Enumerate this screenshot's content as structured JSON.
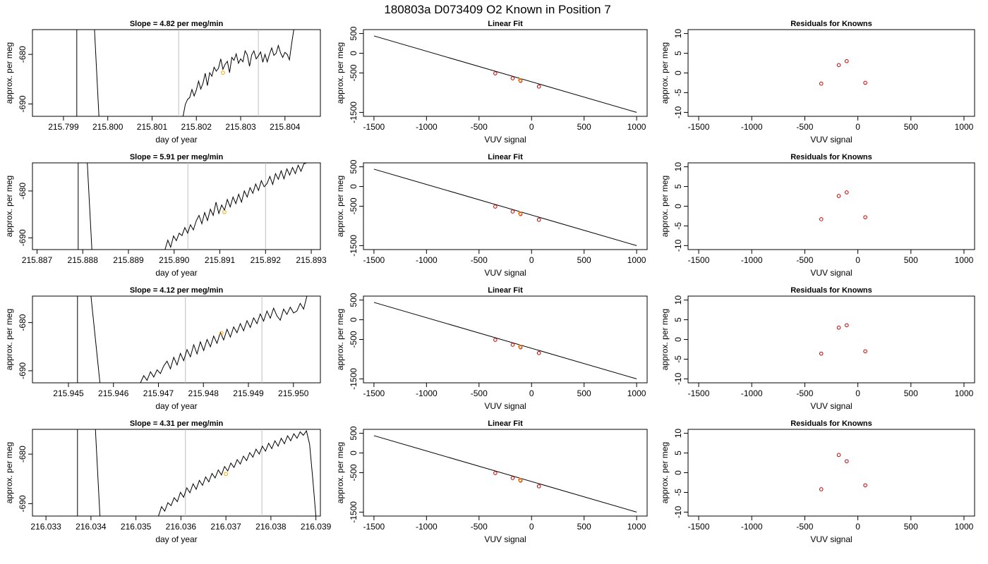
{
  "figure_title": "180803a     D073409   O2 Known in Position  7",
  "colors": {
    "trace": "#000000",
    "marker_line": "#bfbfbf",
    "fit_point": "#cc0000",
    "sample_point": "#ffa500",
    "residual_point": "#cc0000",
    "frame": "#000000"
  },
  "chart_data": [
    {
      "type": "line",
      "panel": "row1-trace",
      "title": "Slope =  4.82  per meg/min",
      "xlabel": "day of year",
      "ylabel": "approx. per meg",
      "xlim": [
        215.7983,
        215.8048
      ],
      "ylim": [
        -692.5,
        -675.0
      ],
      "xticks": [
        "215.799",
        "215.800",
        "215.801",
        "215.802",
        "215.803",
        "215.804"
      ],
      "yticks": [
        "-680",
        "-690"
      ],
      "vlines": [
        215.8016,
        215.8034
      ],
      "sample_point": {
        "x": 215.8026,
        "y": -683.7
      },
      "trace": {
        "x0": 215.8017,
        "x1": 215.8042,
        "amp": 4.5,
        "y": [
          -692.5,
          -690.1,
          -689.1,
          -688.7,
          -687.1,
          -688.4,
          -687.2,
          -685.4,
          -687.0,
          -685.8,
          -683.8,
          -686.3,
          -683.7,
          -684.4,
          -682.6,
          -683.4,
          -682.8,
          -680.9,
          -683.0,
          -682.0,
          -681.4,
          -683.7,
          -680.6,
          -681.2,
          -679.9,
          -681.8,
          -680.9,
          -681.5,
          -679.3,
          -680.1,
          -682.4,
          -680.1,
          -679.3,
          -680.9,
          -680.3,
          -679.5,
          -681.6,
          -680.0,
          -681.5,
          -680.0,
          -678.7,
          -680.2,
          -679.8,
          -678.2,
          -679.7,
          -680.6,
          -679.6,
          -680.0,
          -681.1,
          -677.9,
          -675.0
        ]
      },
      "spike": [
        {
          "x": 215.7993,
          "y": -692.5
        },
        {
          "x": 215.7993,
          "y": -675.0
        },
        {
          "x": 215.7997,
          "y": -675.0
        },
        {
          "x": 215.7998,
          "y": -692.5
        }
      ]
    },
    {
      "type": "line",
      "panel": "row2-trace",
      "title": "Slope =  5.91  per meg/min",
      "xlabel": "day of year",
      "ylabel": "approx. per meg",
      "xlim": [
        215.8869,
        215.8932
      ],
      "ylim": [
        -692.5,
        -674.0
      ],
      "xticks": [
        "215.887",
        "215.888",
        "215.889",
        "215.890",
        "215.891",
        "215.892",
        "215.893"
      ],
      "yticks": [
        "-680",
        "-690"
      ],
      "vlines": [
        215.8903,
        215.892
      ],
      "sample_point": {
        "x": 215.8911,
        "y": -684.5
      },
      "trace": {
        "x0": 215.8898,
        "x1": 215.8929,
        "amp": 4.2,
        "y": [
          -692.5,
          -690.5,
          -692.0,
          -689.6,
          -690.6,
          -689.0,
          -689.5,
          -687.8,
          -689.0,
          -687.2,
          -688.3,
          -686.4,
          -685.2,
          -687.0,
          -684.6,
          -686.3,
          -683.9,
          -685.2,
          -682.4,
          -684.8,
          -683.0,
          -684.1,
          -681.8,
          -683.4,
          -681.3,
          -682.7,
          -680.7,
          -682.4,
          -680.0,
          -681.3,
          -679.3,
          -680.5,
          -678.5,
          -679.9,
          -677.8,
          -679.1,
          -678.4,
          -676.9,
          -678.6,
          -676.3,
          -677.5,
          -675.7,
          -677.4,
          -675.3,
          -676.6,
          -675.0,
          -676.3,
          -674.5,
          -675.8,
          -674.2,
          -674.0
        ]
      },
      "spike": [
        {
          "x": 215.8879,
          "y": -692.5
        },
        {
          "x": 215.8879,
          "y": -674.0
        },
        {
          "x": 215.8881,
          "y": -674.0
        },
        {
          "x": 215.8882,
          "y": -692.5
        }
      ]
    },
    {
      "type": "line",
      "panel": "row3-trace",
      "title": "Slope =  4.12  per meg/min",
      "xlabel": "day of year",
      "ylabel": "approx. per meg",
      "xlim": [
        215.9442,
        215.9506
      ],
      "ylim": [
        -692.5,
        -674.5
      ],
      "xticks": [
        "215.945",
        "215.946",
        "215.947",
        "215.948",
        "215.949",
        "215.950"
      ],
      "yticks": [
        "-680",
        "-690"
      ],
      "vlines": [
        215.9476,
        215.9493
      ],
      "sample_point": {
        "x": 215.9484,
        "y": -682.2
      },
      "trace": {
        "x0": 215.9466,
        "x1": 215.9503,
        "amp": 4.0,
        "y": [
          -692.5,
          -691.0,
          -692.0,
          -690.2,
          -691.3,
          -689.8,
          -690.6,
          -689.0,
          -688.0,
          -689.6,
          -687.2,
          -688.8,
          -686.4,
          -687.9,
          -685.6,
          -687.1,
          -684.6,
          -686.5,
          -684.0,
          -685.8,
          -683.5,
          -685.0,
          -682.8,
          -684.3,
          -682.0,
          -683.6,
          -681.4,
          -683.0,
          -680.9,
          -682.1,
          -680.2,
          -681.7,
          -679.6,
          -681.0,
          -679.0,
          -680.2,
          -678.2,
          -679.7,
          -677.6,
          -679.1,
          -677.0,
          -678.6,
          -679.5,
          -677.2,
          -678.3,
          -676.8,
          -678.0,
          -677.6,
          -676.0,
          -677.2,
          -674.5
        ]
      },
      "spike": [
        {
          "x": 215.9452,
          "y": -692.5
        },
        {
          "x": 215.9452,
          "y": -674.5
        },
        {
          "x": 215.9455,
          "y": -674.5
        },
        {
          "x": 215.9457,
          "y": -692.5
        }
      ]
    },
    {
      "type": "line",
      "panel": "row4-trace",
      "title": "Slope =  4.31  per meg/min",
      "xlabel": "day of year",
      "ylabel": "approx. per meg",
      "xlim": [
        216.0327,
        216.0391
      ],
      "ylim": [
        -692.5,
        -675.0
      ],
      "xticks": [
        "216.033",
        "216.034",
        "216.035",
        "216.036",
        "216.037",
        "216.038",
        "216.039"
      ],
      "yticks": [
        "-680",
        "-690"
      ],
      "vlines": [
        216.0361,
        216.0378
      ],
      "sample_point": {
        "x": 216.037,
        "y": -684.0
      },
      "trace": {
        "x0": 216.0355,
        "x1": 216.039,
        "amp": 3.8,
        "y": [
          -692.5,
          -690.6,
          -691.5,
          -689.8,
          -690.4,
          -688.8,
          -689.6,
          -687.7,
          -688.7,
          -686.8,
          -687.8,
          -686.0,
          -687.1,
          -685.3,
          -686.3,
          -684.6,
          -685.6,
          -683.9,
          -684.8,
          -683.2,
          -684.2,
          -682.5,
          -683.4,
          -681.8,
          -682.7,
          -681.1,
          -682.0,
          -680.4,
          -681.3,
          -679.7,
          -680.6,
          -679.0,
          -680.0,
          -678.4,
          -679.4,
          -677.8,
          -678.9,
          -677.3,
          -678.4,
          -676.8,
          -677.9,
          -676.3,
          -677.3,
          -675.9,
          -676.8,
          -675.5,
          -676.2,
          -675.3,
          -678.0,
          -685.0,
          -692.5
        ]
      },
      "spike": [
        {
          "x": 216.0337,
          "y": -692.5
        },
        {
          "x": 216.0337,
          "y": -675.0
        },
        {
          "x": 216.0341,
          "y": -675.0
        },
        {
          "x": 216.0342,
          "y": -692.5
        }
      ]
    },
    {
      "type": "scatter",
      "panel": "row1-fit",
      "title": "Linear Fit",
      "xlabel": "VUV signal",
      "ylabel": "approx. per meg",
      "xlim": [
        -1600,
        1100
      ],
      "ylim": [
        -1600,
        600
      ],
      "xticks": [
        "-1500",
        "-1000",
        "-500",
        "0",
        "500",
        "1000"
      ],
      "yticks": [
        "500",
        "0",
        "-500",
        "-1500"
      ],
      "fit_line": {
        "x": [
          -1500,
          1000
        ],
        "y": [
          440,
          -1500
        ]
      },
      "points": [
        {
          "x": -345,
          "y": -510
        },
        {
          "x": -180,
          "y": -635
        },
        {
          "x": -105,
          "y": -700
        },
        {
          "x": 70,
          "y": -845
        }
      ],
      "sample_point": {
        "x": -110,
        "y": -680
      }
    },
    {
      "type": "scatter",
      "panel": "row2-fit",
      "title": "Linear Fit",
      "xlabel": "VUV signal",
      "ylabel": "approx. per meg",
      "xlim": [
        -1600,
        1100
      ],
      "ylim": [
        -1600,
        600
      ],
      "xticks": [
        "-1500",
        "-1000",
        "-500",
        "0",
        "500",
        "1000"
      ],
      "yticks": [
        "500",
        "0",
        "-500",
        "-1500"
      ],
      "fit_line": {
        "x": [
          -1500,
          1000
        ],
        "y": [
          440,
          -1500
        ]
      },
      "points": [
        {
          "x": -345,
          "y": -510
        },
        {
          "x": -180,
          "y": -635
        },
        {
          "x": -105,
          "y": -700
        },
        {
          "x": 70,
          "y": -845
        }
      ],
      "sample_point": {
        "x": -110,
        "y": -680
      }
    },
    {
      "type": "scatter",
      "panel": "row3-fit",
      "title": "Linear Fit",
      "xlabel": "VUV signal",
      "ylabel": "approx. per meg",
      "xlim": [
        -1600,
        1100
      ],
      "ylim": [
        -1600,
        600
      ],
      "xticks": [
        "-1500",
        "-1000",
        "-500",
        "0",
        "500",
        "1000"
      ],
      "yticks": [
        "500",
        "0",
        "-500",
        "-1500"
      ],
      "fit_line": {
        "x": [
          -1500,
          1000
        ],
        "y": [
          440,
          -1500
        ]
      },
      "points": [
        {
          "x": -345,
          "y": -510
        },
        {
          "x": -180,
          "y": -635
        },
        {
          "x": -105,
          "y": -700
        },
        {
          "x": 70,
          "y": -845
        }
      ],
      "sample_point": {
        "x": -110,
        "y": -680
      }
    },
    {
      "type": "scatter",
      "panel": "row4-fit",
      "title": "Linear Fit",
      "xlabel": "VUV signal",
      "ylabel": "approx. per meg",
      "xlim": [
        -1600,
        1100
      ],
      "ylim": [
        -1600,
        600
      ],
      "xticks": [
        "-1500",
        "-1000",
        "-500",
        "0",
        "500",
        "1000"
      ],
      "yticks": [
        "500",
        "0",
        "-500",
        "-1500"
      ],
      "fit_line": {
        "x": [
          -1500,
          1000
        ],
        "y": [
          440,
          -1500
        ]
      },
      "points": [
        {
          "x": -345,
          "y": -510
        },
        {
          "x": -180,
          "y": -635
        },
        {
          "x": -105,
          "y": -700
        },
        {
          "x": 70,
          "y": -845
        }
      ],
      "sample_point": {
        "x": -110,
        "y": -680
      }
    },
    {
      "type": "scatter",
      "panel": "row1-residuals",
      "title": "Residuals for Knowns",
      "xlabel": "VUV signal",
      "ylabel": "approx. per meg",
      "xlim": [
        -1600,
        1100
      ],
      "ylim": [
        -11,
        11
      ],
      "xticks": [
        "-1500",
        "-1000",
        "-500",
        "0",
        "500",
        "1000"
      ],
      "yticks": [
        "10",
        "5",
        "0",
        "-5",
        "-10"
      ],
      "points": [
        {
          "x": -345,
          "y": -2.7
        },
        {
          "x": -180,
          "y": 2.0
        },
        {
          "x": -105,
          "y": 3.0
        },
        {
          "x": 70,
          "y": -2.5
        }
      ]
    },
    {
      "type": "scatter",
      "panel": "row2-residuals",
      "title": "Residuals for Knowns",
      "xlabel": "VUV signal",
      "ylabel": "approx. per meg",
      "xlim": [
        -1600,
        1100
      ],
      "ylim": [
        -11,
        11
      ],
      "xticks": [
        "-1500",
        "-1000",
        "-500",
        "0",
        "500",
        "1000"
      ],
      "yticks": [
        "10",
        "5",
        "0",
        "-5",
        "-10"
      ],
      "points": [
        {
          "x": -345,
          "y": -3.3
        },
        {
          "x": -180,
          "y": 2.6
        },
        {
          "x": -105,
          "y": 3.5
        },
        {
          "x": 70,
          "y": -2.8
        }
      ]
    },
    {
      "type": "scatter",
      "panel": "row3-residuals",
      "title": "Residuals for Knowns",
      "xlabel": "VUV signal",
      "ylabel": "approx. per meg",
      "xlim": [
        -1600,
        1100
      ],
      "ylim": [
        -11,
        11
      ],
      "xticks": [
        "-1500",
        "-1000",
        "-500",
        "0",
        "500",
        "1000"
      ],
      "yticks": [
        "10",
        "5",
        "0",
        "-5",
        "-10"
      ],
      "points": [
        {
          "x": -345,
          "y": -3.6
        },
        {
          "x": -180,
          "y": 3.0
        },
        {
          "x": -105,
          "y": 3.6
        },
        {
          "x": 70,
          "y": -3.0
        }
      ]
    },
    {
      "type": "scatter",
      "panel": "row4-residuals",
      "title": "Residuals for Knowns",
      "xlabel": "VUV signal",
      "ylabel": "approx. per meg",
      "xlim": [
        -1600,
        1100
      ],
      "ylim": [
        -11,
        11
      ],
      "xticks": [
        "-1500",
        "-1000",
        "-500",
        "0",
        "500",
        "1000"
      ],
      "yticks": [
        "10",
        "5",
        "0",
        "-5",
        "-10"
      ],
      "points": [
        {
          "x": -345,
          "y": -4.2
        },
        {
          "x": -180,
          "y": 4.5
        },
        {
          "x": -105,
          "y": 2.9
        },
        {
          "x": 70,
          "y": -3.2
        }
      ]
    }
  ]
}
